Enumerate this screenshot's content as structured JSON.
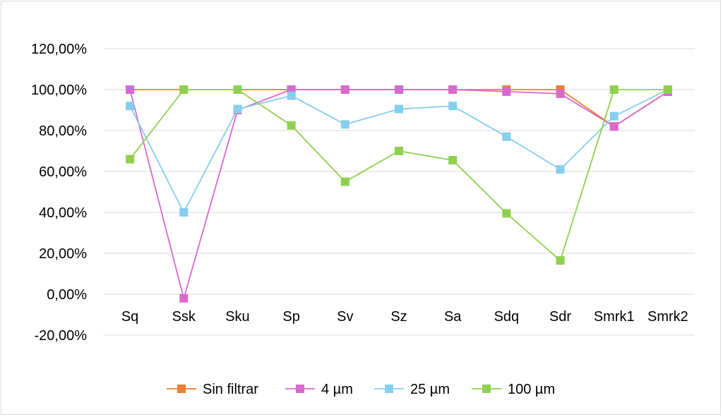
{
  "chart_data": {
    "type": "line",
    "title": "",
    "xlabel": "",
    "ylabel": "",
    "categories": [
      "Sq",
      "Ssk",
      "Sku",
      "Sp",
      "Sv",
      "Sz",
      "Sa",
      "Sdq",
      "Sdr",
      "Smrk1",
      "Smrk2"
    ],
    "ylim": [
      -20,
      120
    ],
    "yticks": [
      -20,
      0,
      20,
      40,
      60,
      80,
      100,
      120
    ],
    "ytick_labels": [
      "-20,00%",
      "0,00%",
      "20,00%",
      "40,00%",
      "60,00%",
      "80,00%",
      "100,00%",
      "120,00%"
    ],
    "grid": true,
    "legend_position": "bottom",
    "series": [
      {
        "name": "Sin filtrar",
        "color": "#ed7d31",
        "values": [
          100,
          100,
          100,
          100,
          100,
          100,
          100,
          100,
          100,
          82,
          99
        ]
      },
      {
        "name": "4 µm",
        "color": "#d968cf",
        "values": [
          100,
          -2,
          90,
          100,
          100,
          100,
          100,
          99,
          98,
          82,
          99
        ]
      },
      {
        "name": "25 µm",
        "color": "#86cfec",
        "values": [
          92,
          40,
          90.5,
          97,
          83,
          90.5,
          92,
          77,
          61,
          87,
          100
        ]
      },
      {
        "name": "100 µm",
        "color": "#8fd14f",
        "values": [
          66,
          100,
          100,
          82.5,
          55,
          70,
          65.5,
          39.5,
          16.5,
          100,
          100
        ]
      }
    ]
  }
}
